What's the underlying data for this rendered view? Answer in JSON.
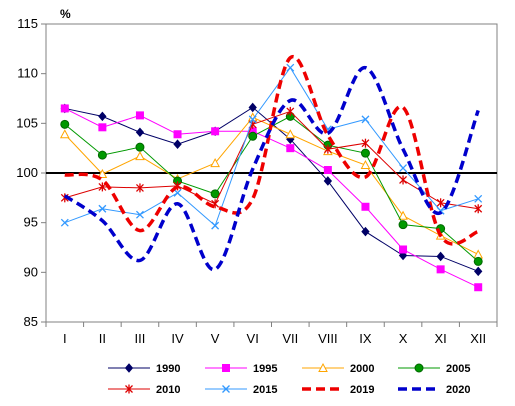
{
  "chart_data": {
    "type": "line",
    "ylabel": "%",
    "ylim": [
      85,
      115
    ],
    "yticks": [
      "85",
      "90",
      "95",
      "100",
      "105",
      "110",
      "115"
    ],
    "categories": [
      "I",
      "II",
      "III",
      "IV",
      "V",
      "VI",
      "VII",
      "VIII",
      "IX",
      "X",
      "XI",
      "XII"
    ],
    "reference_line": 100,
    "grid": false,
    "legend_position": "bottom",
    "series": [
      {
        "name": "1990",
        "color": "#000066",
        "marker": "diamond",
        "dashed": false,
        "smooth": false,
        "values": [
          106.5,
          105.7,
          104.1,
          102.9,
          104.2,
          106.6,
          103.4,
          99.2,
          94.1,
          91.7,
          91.6,
          90.1
        ]
      },
      {
        "name": "1995",
        "color": "#ff00ff",
        "marker": "square",
        "dashed": false,
        "smooth": false,
        "values": [
          106.5,
          104.6,
          105.8,
          103.9,
          104.2,
          104.2,
          102.5,
          100.3,
          96.6,
          92.3,
          90.3,
          88.5
        ]
      },
      {
        "name": "2000",
        "color": "#ffa500",
        "marker": "triangle",
        "dashed": false,
        "smooth": false,
        "values": [
          103.9,
          99.9,
          101.7,
          99.4,
          101.0,
          105.6,
          103.9,
          102.2,
          100.8,
          95.7,
          93.7,
          91.8
        ]
      },
      {
        "name": "2005",
        "color": "#009900",
        "marker": "circle",
        "dashed": false,
        "smooth": false,
        "values": [
          104.9,
          101.8,
          102.6,
          99.2,
          97.9,
          103.7,
          105.7,
          102.8,
          102.0,
          94.8,
          94.4,
          91.1
        ]
      },
      {
        "name": "2010",
        "color": "#dd0000",
        "marker": "star",
        "dashed": false,
        "smooth": false,
        "values": [
          97.5,
          98.6,
          98.5,
          98.7,
          96.9,
          104.9,
          106.2,
          102.4,
          103.0,
          99.3,
          97.0,
          96.4
        ]
      },
      {
        "name": "2015",
        "color": "#3399ff",
        "marker": "x",
        "dashed": false,
        "smooth": false,
        "values": [
          95.0,
          96.4,
          95.8,
          98.0,
          94.7,
          105.4,
          110.6,
          104.4,
          105.4,
          100.5,
          96.2,
          97.4
        ]
      },
      {
        "name": "2019",
        "color": "#ee0000",
        "marker": "none",
        "dashed": true,
        "smooth": true,
        "values": [
          99.8,
          99.3,
          94.2,
          98.6,
          96.6,
          97.4,
          111.6,
          103.8,
          99.6,
          106.6,
          93.7,
          94.1
        ]
      },
      {
        "name": "2020",
        "color": "#0000cc",
        "marker": "none",
        "dashed": true,
        "smooth": true,
        "values": [
          97.7,
          95.2,
          91.2,
          96.9,
          90.3,
          100.4,
          107.3,
          104.0,
          110.6,
          102.4,
          96.0,
          106.3
        ]
      }
    ]
  }
}
